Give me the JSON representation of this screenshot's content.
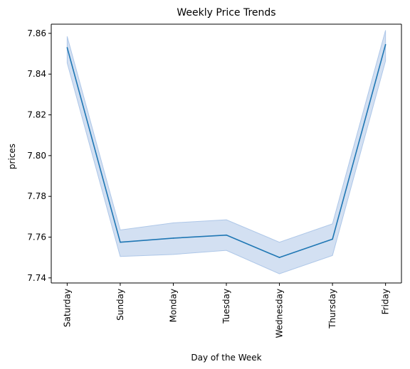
{
  "chart_data": {
    "type": "line",
    "title": "Weekly Price Trends",
    "xlabel": "Day of the Week",
    "ylabel": "prices",
    "categories": [
      "Saturday",
      "Sunday",
      "Monday",
      "Tuesday",
      "Wednesday",
      "Thursday",
      "Friday"
    ],
    "series": [
      {
        "values": [
          7.853,
          7.7575,
          7.7595,
          7.761,
          7.75,
          7.759,
          7.8545
        ],
        "ci_low": [
          7.8455,
          7.7505,
          7.7515,
          7.7535,
          7.742,
          7.751,
          7.8465
        ],
        "ci_high": [
          7.8585,
          7.7635,
          7.767,
          7.7685,
          7.7575,
          7.7665,
          7.8615
        ],
        "color": "#1f77b4",
        "band_color": "#aec7e8"
      }
    ],
    "ylim": [
      7.7375,
      7.8645
    ],
    "yticks": [
      7.74,
      7.76,
      7.78,
      7.8,
      7.82,
      7.84,
      7.86
    ],
    "ytick_labels": [
      "7.74",
      "7.76",
      "7.78",
      "7.80",
      "7.82",
      "7.84",
      "7.86"
    ],
    "grid": false,
    "legend": "none"
  }
}
